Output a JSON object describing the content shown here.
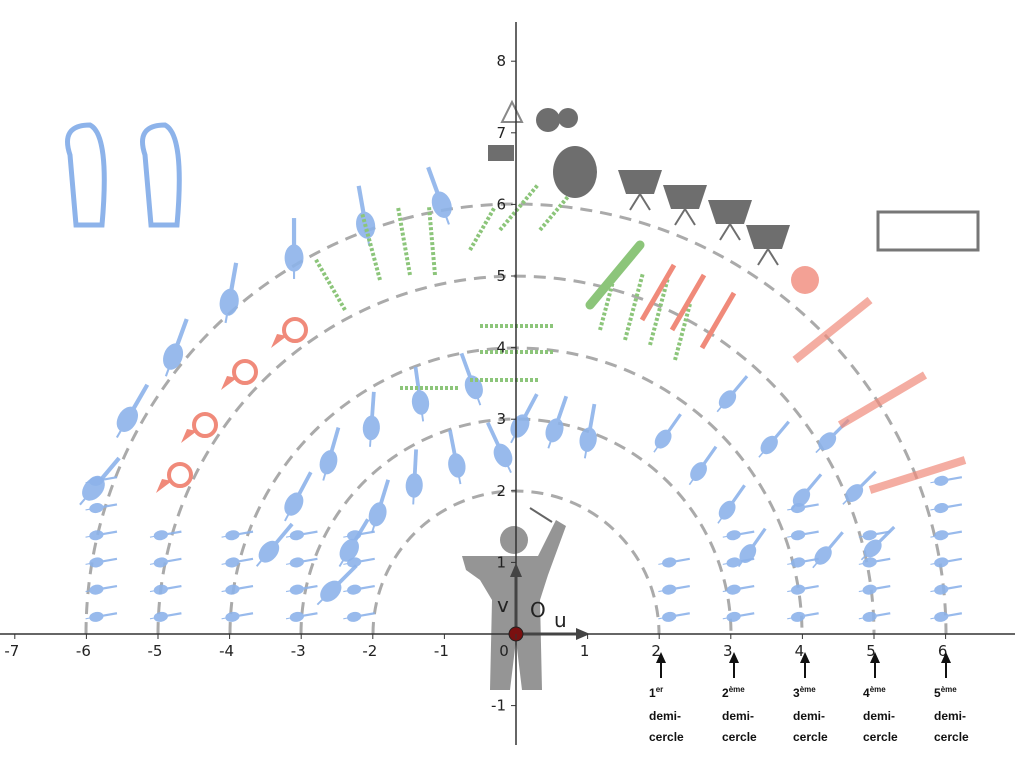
{
  "axes": {
    "x_ticks": [
      -7,
      -6,
      -5,
      -4,
      -3,
      -2,
      -1,
      0,
      1,
      2,
      3,
      4,
      5,
      6
    ],
    "y_ticks": [
      -1,
      1,
      2,
      3,
      4,
      5,
      6,
      7,
      8
    ],
    "origin": "O",
    "u": "u",
    "v": "v"
  },
  "annotations": [
    {
      "number": "1",
      "suffix": "er",
      "line1": "demi-",
      "line2": "cercle"
    },
    {
      "number": "2",
      "suffix": "ème",
      "line1": "demi-",
      "line2": "cercle"
    },
    {
      "number": "3",
      "suffix": "ème",
      "line1": "demi-",
      "line2": "cercle"
    },
    {
      "number": "4",
      "suffix": "ème",
      "line1": "demi-",
      "line2": "cercle"
    },
    {
      "number": "5",
      "suffix": "ème",
      "line1": "demi-",
      "line2": "cercle"
    }
  ]
}
